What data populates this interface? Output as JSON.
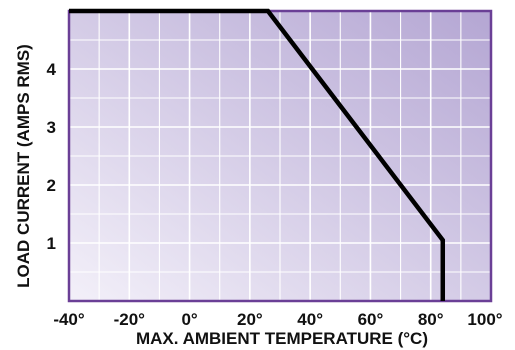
{
  "chart_data": {
    "type": "line",
    "title": "",
    "xlabel": "MAX. AMBIENT TEMPERATURE (°C)",
    "ylabel": "LOAD CURRENT (AMPS RMS)",
    "xlim": [
      -40,
      100
    ],
    "ylim": [
      0,
      5
    ],
    "x_ticks": [
      -40,
      -20,
      0,
      20,
      40,
      60,
      80,
      100
    ],
    "x_tick_labels": [
      "-40°",
      "-20°",
      "0°",
      "20°",
      "40°",
      "60°",
      "80°",
      "100°"
    ],
    "y_ticks": [
      1,
      2,
      3,
      4
    ],
    "y_tick_labels": [
      "1",
      "2",
      "3",
      "4"
    ],
    "grid": true,
    "x_minor_step": 10,
    "y_minor_step": 0.5,
    "legend": "none",
    "colors": {
      "line": "#000000",
      "frame": "#6a3f96",
      "grid": "#ffffff",
      "bg_light": "#f3f0f9",
      "bg_dark": "#b4a6d3"
    },
    "series": [
      {
        "x": [
          -40,
          26,
          84,
          84
        ],
        "y": [
          5.0,
          5.0,
          1.05,
          0
        ]
      }
    ]
  }
}
